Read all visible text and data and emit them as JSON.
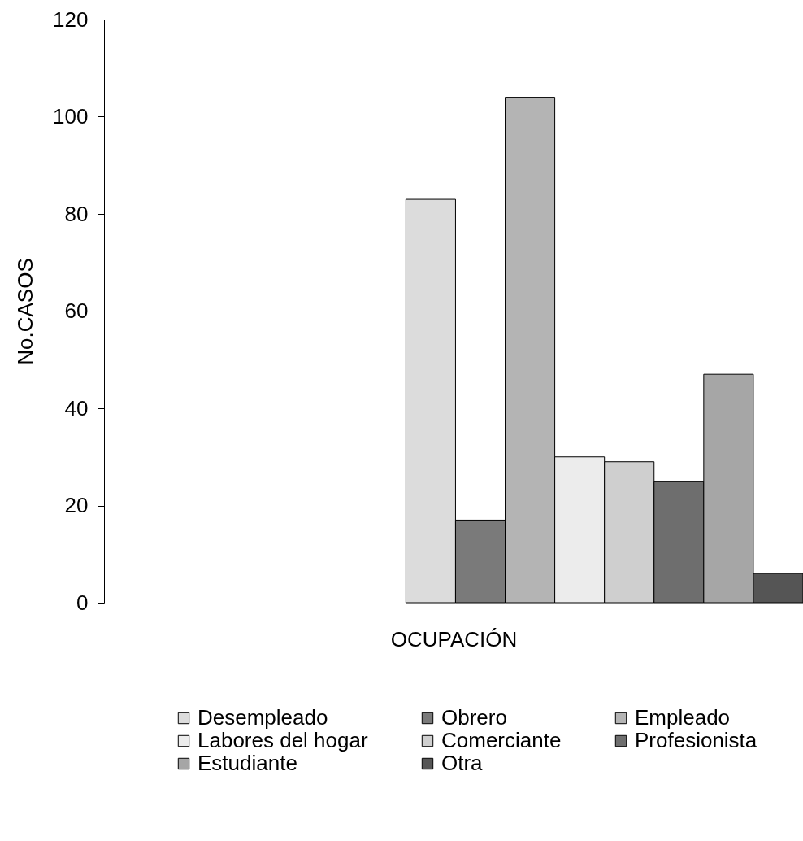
{
  "chart_data": {
    "type": "bar",
    "xlabel": "OCUPACIÓN",
    "ylabel": "No.CASOS",
    "categories": [
      null
    ],
    "series": [
      {
        "name": "Desempleado",
        "color": "#dcdcdc",
        "values": [
          83
        ]
      },
      {
        "name": "Obrero",
        "color": "#7a7a7a",
        "values": [
          17
        ]
      },
      {
        "name": "Empleado",
        "color": "#b4b4b4",
        "values": [
          104
        ]
      },
      {
        "name": "Labores del hogar",
        "color": "#ececec",
        "values": [
          30
        ]
      },
      {
        "name": "Comerciante",
        "color": "#cfcfcf",
        "values": [
          29
        ]
      },
      {
        "name": "Profesionista",
        "color": "#6e6e6e",
        "values": [
          25
        ]
      },
      {
        "name": "Estudiante",
        "color": "#a6a6a6",
        "values": [
          47
        ]
      },
      {
        "name": "Otra",
        "color": "#555555",
        "values": [
          6
        ]
      }
    ],
    "ylim": [
      0,
      120
    ],
    "yticks": [
      0,
      20,
      40,
      60,
      80,
      100,
      120
    ],
    "grid": false,
    "legend": "bottom"
  }
}
